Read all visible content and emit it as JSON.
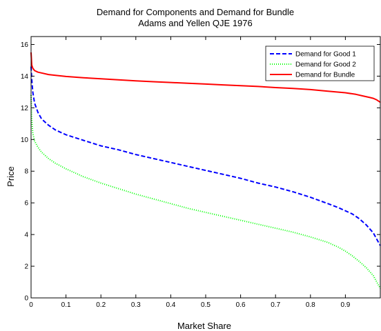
{
  "chart_data": {
    "type": "line",
    "title": "Demand for Components and Demand for Bundle",
    "subtitle": "Adams and Yellen QJE 1976",
    "xlabel": "Market Share",
    "ylabel": "Price",
    "xlim": [
      0,
      1
    ],
    "ylim": [
      0,
      16.5
    ],
    "xticks": [
      0,
      0.1,
      0.2,
      0.3,
      0.4,
      0.5,
      0.6,
      0.7,
      0.8,
      0.9
    ],
    "yticks": [
      0,
      2,
      4,
      6,
      8,
      10,
      12,
      14,
      16
    ],
    "grid": false,
    "legend_position": "top-right",
    "series": [
      {
        "name": "Demand for Good 1",
        "color": "#0000ff",
        "style": "dashed",
        "x": [
          0,
          0.002,
          0.005,
          0.01,
          0.02,
          0.03,
          0.05,
          0.07,
          0.1,
          0.15,
          0.2,
          0.25,
          0.3,
          0.35,
          0.4,
          0.45,
          0.5,
          0.55,
          0.6,
          0.65,
          0.7,
          0.75,
          0.8,
          0.85,
          0.88,
          0.9,
          0.92,
          0.94,
          0.96,
          0.98,
          0.99,
          1.0
        ],
        "y": [
          14.6,
          13.8,
          13.0,
          12.3,
          11.7,
          11.3,
          10.9,
          10.6,
          10.3,
          9.95,
          9.6,
          9.35,
          9.05,
          8.8,
          8.55,
          8.3,
          8.05,
          7.8,
          7.55,
          7.25,
          7.0,
          6.7,
          6.35,
          5.95,
          5.7,
          5.5,
          5.3,
          5.0,
          4.6,
          4.1,
          3.7,
          3.3
        ]
      },
      {
        "name": "Demand for Good 2",
        "color": "#00ff00",
        "style": "dotted",
        "x": [
          0,
          0.002,
          0.005,
          0.01,
          0.02,
          0.03,
          0.05,
          0.07,
          0.1,
          0.15,
          0.2,
          0.25,
          0.3,
          0.35,
          0.4,
          0.45,
          0.5,
          0.55,
          0.6,
          0.65,
          0.7,
          0.75,
          0.8,
          0.85,
          0.88,
          0.9,
          0.92,
          0.94,
          0.96,
          0.98,
          0.99,
          1.0
        ],
        "y": [
          12.8,
          11.3,
          10.4,
          9.9,
          9.5,
          9.2,
          8.8,
          8.5,
          8.15,
          7.65,
          7.25,
          6.9,
          6.55,
          6.25,
          5.95,
          5.65,
          5.4,
          5.15,
          4.9,
          4.65,
          4.4,
          4.15,
          3.85,
          3.5,
          3.2,
          2.95,
          2.65,
          2.3,
          1.9,
          1.4,
          1.0,
          0.6
        ]
      },
      {
        "name": "Demand for Bundle",
        "color": "#ff0000",
        "style": "solid",
        "x": [
          0,
          0.002,
          0.005,
          0.01,
          0.02,
          0.03,
          0.05,
          0.07,
          0.1,
          0.15,
          0.2,
          0.25,
          0.3,
          0.35,
          0.4,
          0.45,
          0.5,
          0.55,
          0.6,
          0.65,
          0.7,
          0.75,
          0.8,
          0.85,
          0.9,
          0.93,
          0.95,
          0.97,
          0.98,
          0.99,
          1.0
        ],
        "y": [
          15.5,
          14.7,
          14.5,
          14.35,
          14.25,
          14.2,
          14.1,
          14.05,
          13.98,
          13.9,
          13.83,
          13.77,
          13.7,
          13.65,
          13.6,
          13.55,
          13.5,
          13.45,
          13.4,
          13.35,
          13.28,
          13.22,
          13.15,
          13.05,
          12.95,
          12.85,
          12.75,
          12.65,
          12.6,
          12.5,
          12.35
        ]
      }
    ]
  }
}
